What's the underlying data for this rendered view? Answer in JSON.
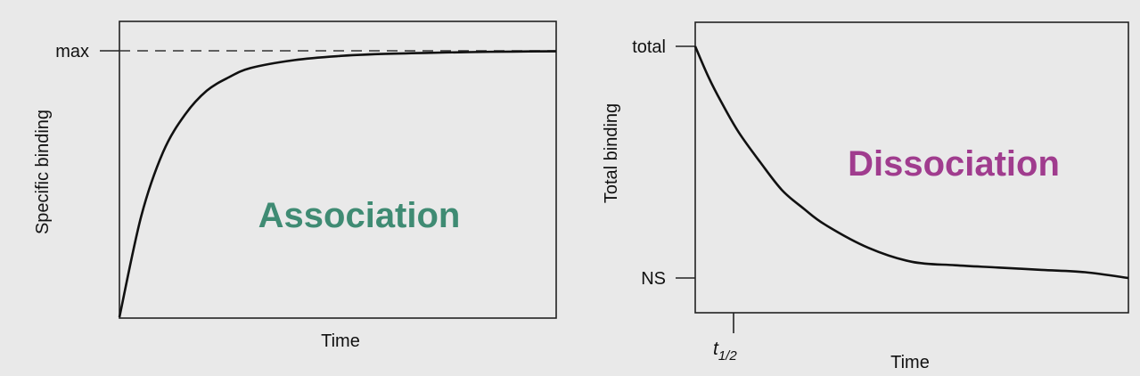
{
  "chart_data": [
    {
      "type": "line",
      "title": "Association",
      "xlabel": "Time",
      "ylabel": "Specific binding",
      "y_tick_labels": [
        "max"
      ],
      "reference_lines": [
        {
          "label": "max",
          "style": "dashed"
        }
      ],
      "grid": false,
      "series": [
        {
          "x": [
            0,
            0.05,
            0.1,
            0.15,
            0.2,
            0.25,
            0.3,
            0.4,
            0.5,
            0.6,
            0.7,
            0.8,
            0.9,
            1.0
          ],
          "y": [
            0,
            0.38,
            0.62,
            0.76,
            0.85,
            0.9,
            0.935,
            0.965,
            0.98,
            0.988,
            0.992,
            0.995,
            0.997,
            0.998
          ]
        }
      ],
      "colors": {
        "title": "#3f8b73",
        "line": "#111111",
        "dash": "#333333"
      }
    },
    {
      "type": "line",
      "title": "Dissociation",
      "xlabel": "Time",
      "ylabel": "Total binding",
      "y_tick_labels": [
        "total",
        "NS"
      ],
      "x_tick_labels": [
        {
          "base": "t",
          "sub": "1/2"
        }
      ],
      "grid": false,
      "series": [
        {
          "x": [
            0,
            0.03,
            0.06,
            0.1,
            0.15,
            0.2,
            0.25,
            0.3,
            0.4,
            0.5,
            0.6,
            0.7,
            0.8,
            0.9,
            1.0
          ],
          "y": [
            1.0,
            0.87,
            0.76,
            0.63,
            0.5,
            0.38,
            0.3,
            0.23,
            0.13,
            0.07,
            0.055,
            0.045,
            0.035,
            0.025,
            0.0
          ]
        }
      ],
      "colors": {
        "title": "#a03c8e",
        "line": "#111111"
      }
    }
  ]
}
